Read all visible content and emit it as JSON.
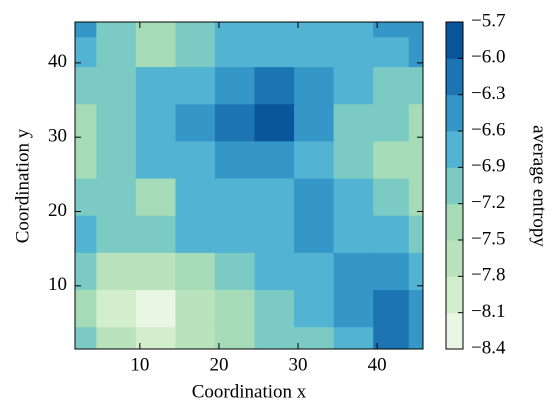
{
  "chart_data": {
    "type": "contour",
    "xlabel": "Coordination x",
    "ylabel": "Coordination y",
    "x": [
      2,
      7,
      12,
      17,
      22,
      27,
      32,
      37,
      42,
      46
    ],
    "y": [
      2,
      7,
      12,
      17,
      22,
      27,
      32,
      37,
      42,
      45
    ],
    "z": [
      [
        -7.0,
        -7.6,
        -7.9,
        -7.6,
        -7.4,
        -7.2,
        -7.0,
        -6.7,
        -6.3,
        -6.6
      ],
      [
        -7.3,
        -8.0,
        -8.3,
        -7.8,
        -7.5,
        -7.1,
        -6.9,
        -6.4,
        -6.1,
        -6.5
      ],
      [
        -7.0,
        -7.6,
        -7.7,
        -7.4,
        -7.1,
        -6.9,
        -6.9,
        -6.6,
        -6.5,
        -6.8
      ],
      [
        -6.8,
        -7.0,
        -7.1,
        -6.9,
        -6.8,
        -6.7,
        -6.6,
        -6.8,
        -6.8,
        -7.0
      ],
      [
        -7.2,
        -7.0,
        -7.3,
        -6.9,
        -6.7,
        -6.8,
        -6.6,
        -6.8,
        -7.1,
        -7.3
      ],
      [
        -7.3,
        -7.1,
        -6.9,
        -6.8,
        -6.5,
        -6.5,
        -6.9,
        -7.1,
        -7.3,
        -7.4
      ],
      [
        -7.4,
        -7.0,
        -6.9,
        -6.5,
        -6.1,
        -6.0,
        -6.5,
        -7.0,
        -7.2,
        -7.4
      ],
      [
        -7.2,
        -7.0,
        -6.9,
        -6.7,
        -6.4,
        -6.3,
        -6.6,
        -6.9,
        -7.0,
        -7.1
      ],
      [
        -6.8,
        -7.2,
        -7.4,
        -7.2,
        -6.9,
        -6.7,
        -6.8,
        -6.8,
        -6.7,
        -6.5
      ],
      [
        -6.5,
        -7.0,
        -7.3,
        -7.2,
        -6.8,
        -6.7,
        -6.8,
        -6.7,
        -6.5,
        -6.4
      ]
    ],
    "xlim": [
      1.8,
      45.8
    ],
    "ylim": [
      1.5,
      45.5
    ],
    "xticks": [
      10,
      20,
      30,
      40
    ],
    "yticks": [
      10,
      20,
      30,
      40
    ],
    "colorbar": {
      "label": "average entropy",
      "levels": [
        {
          "value": -8.4,
          "label": "−8.4"
        },
        {
          "value": -8.1,
          "label": "−8.1"
        },
        {
          "value": -7.8,
          "label": "−7.8"
        },
        {
          "value": -7.5,
          "label": "−7.5"
        },
        {
          "value": -7.2,
          "label": "−7.2"
        },
        {
          "value": -6.9,
          "label": "−6.9"
        },
        {
          "value": -6.6,
          "label": "−6.6"
        },
        {
          "value": -6.3,
          "label": "−6.3"
        },
        {
          "value": -6.0,
          "label": "−6.0"
        },
        {
          "value": -5.7,
          "label": "−5.7"
        }
      ],
      "colors": [
        "#e8f6e3",
        "#d3eecd",
        "#b9e3bc",
        "#a5dbb7",
        "#7bcbc4",
        "#52b4d2",
        "#3597c8",
        "#1c74b3",
        "#0a559b"
      ]
    }
  }
}
